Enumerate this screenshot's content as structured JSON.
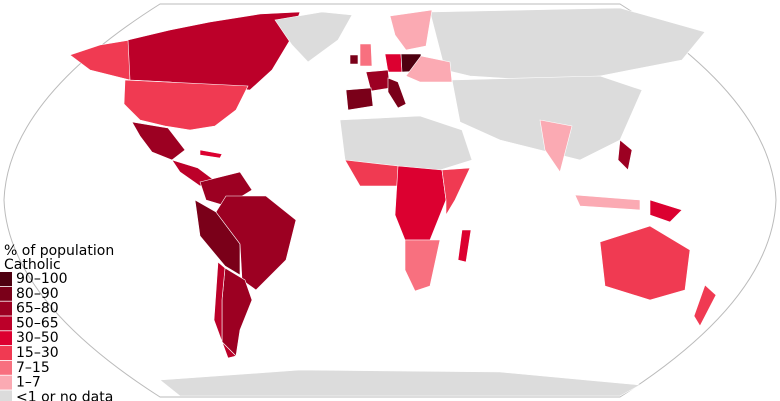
{
  "legend": {
    "title": [
      "% of population",
      "Catholic"
    ],
    "items": [
      {
        "label": "90–100",
        "color": "#4e0010"
      },
      {
        "label": "80–90",
        "color": "#7a0019"
      },
      {
        "label": "65–80",
        "color": "#9c0022"
      },
      {
        "label": "50–65",
        "color": "#bc0029"
      },
      {
        "label": "30–50",
        "color": "#dc0030"
      },
      {
        "label": "15–30",
        "color": "#f03a52"
      },
      {
        "label": "7–15",
        "color": "#f8707f"
      },
      {
        "label": "1–7",
        "color": "#fbaab3"
      },
      {
        "label": "<1 or no data",
        "color": "#dcdcdc"
      }
    ]
  }
}
